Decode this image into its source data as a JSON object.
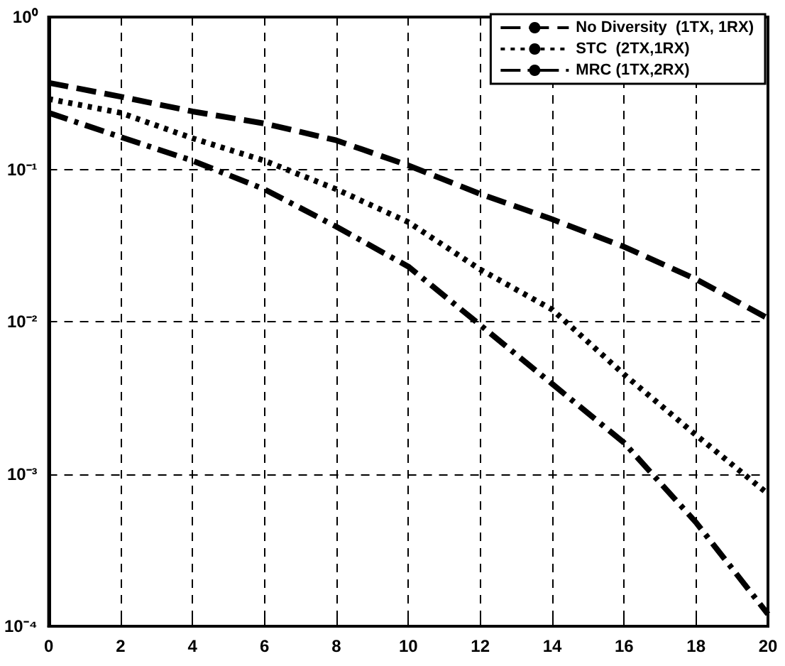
{
  "chart_data": {
    "type": "line",
    "x": [
      0,
      2,
      4,
      6,
      8,
      10,
      12,
      14,
      16,
      18,
      20
    ],
    "series": [
      {
        "name": "No Diversity  (1TX, 1RX)",
        "color": "#000000",
        "line_style": "dashed",
        "values": [
          0.37,
          0.3,
          0.24,
          0.2,
          0.155,
          0.106,
          0.069,
          0.047,
          0.031,
          0.019,
          0.0105
        ]
      },
      {
        "name": "STC  (2TX,1RX)",
        "color": "#000000",
        "line_style": "dotted",
        "values": [
          0.29,
          0.235,
          0.16,
          0.114,
          0.074,
          0.045,
          0.022,
          0.012,
          0.0045,
          0.0018,
          0.00074
        ]
      },
      {
        "name": "MRC (1TX,2RX)",
        "color": "#000000",
        "line_style": "dashdot",
        "values": [
          0.235,
          0.163,
          0.114,
          0.074,
          0.042,
          0.023,
          0.0095,
          0.0039,
          0.0016,
          0.00048,
          0.00012
        ]
      }
    ],
    "log": "y",
    "xlim": [
      0,
      20
    ],
    "xticks": [
      0,
      2,
      4,
      6,
      8,
      10,
      12,
      14,
      16,
      18,
      20
    ],
    "ylim": [
      0.0001,
      1
    ],
    "yticks": [
      {
        "value": 0.0001,
        "label": "10⁻⁴"
      },
      {
        "value": 0.001,
        "label": "10⁻³"
      },
      {
        "value": 0.01,
        "label": "10⁻²"
      },
      {
        "value": 0.1,
        "label": "10⁻¹"
      },
      {
        "value": 1,
        "label": "10⁰"
      }
    ],
    "grid": true,
    "legend": "top right",
    "marker": "none"
  }
}
